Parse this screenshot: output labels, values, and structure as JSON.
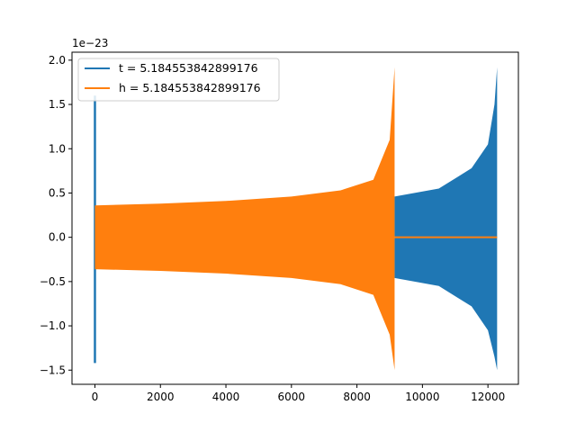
{
  "chart_data": {
    "type": "line",
    "title": "",
    "xlabel": "",
    "ylabel": "",
    "y_scale_label": "1e−23",
    "xlim": [
      -700,
      12930
    ],
    "ylim": [
      -1.66,
      2.09
    ],
    "xticks": [
      0,
      2000,
      4000,
      6000,
      8000,
      10000,
      12000
    ],
    "yticks": [
      -1.5,
      -1.0,
      -0.5,
      0.0,
      0.5,
      1.0,
      1.5,
      2.0
    ],
    "xtick_labels": [
      "0",
      "2000",
      "4000",
      "6000",
      "8000",
      "10000",
      "12000"
    ],
    "ytick_labels": [
      "−1.5",
      "−1.0",
      "−0.5",
      "0.0",
      "0.5",
      "1.0",
      "1.5",
      "2.0"
    ],
    "grid": false,
    "legend_position": "upper-left",
    "series": [
      {
        "name": "t = 5.184553842899176",
        "color": "#1f77b4",
        "shape": "chirp",
        "points": [
          [
            0,
            1.6
          ],
          [
            0,
            -1.42
          ],
          [
            9150,
            0.46
          ],
          [
            9150,
            -0.46
          ],
          [
            10500,
            0.55
          ],
          [
            10500,
            -0.55
          ],
          [
            11500,
            0.78
          ],
          [
            11500,
            -0.78
          ],
          [
            12000,
            1.05
          ],
          [
            12000,
            -1.05
          ],
          [
            12200,
            1.5
          ],
          [
            12200,
            -1.35
          ],
          [
            12280,
            1.92
          ],
          [
            12280,
            -1.5
          ]
        ]
      },
      {
        "name": "h = 5.184553842899176",
        "color": "#ff7f0e",
        "shape": "chirp",
        "points": [
          [
            0,
            0.36
          ],
          [
            0,
            -0.36
          ],
          [
            2000,
            0.38
          ],
          [
            2000,
            -0.38
          ],
          [
            4000,
            0.41
          ],
          [
            4000,
            -0.41
          ],
          [
            6000,
            0.46
          ],
          [
            6000,
            -0.46
          ],
          [
            7500,
            0.53
          ],
          [
            7500,
            -0.53
          ],
          [
            8500,
            0.65
          ],
          [
            8500,
            -0.65
          ],
          [
            9000,
            1.1
          ],
          [
            9000,
            -1.1
          ],
          [
            9150,
            1.92
          ],
          [
            9150,
            -1.5
          ],
          [
            9200,
            0.0
          ],
          [
            12280,
            0.0
          ]
        ]
      }
    ]
  }
}
